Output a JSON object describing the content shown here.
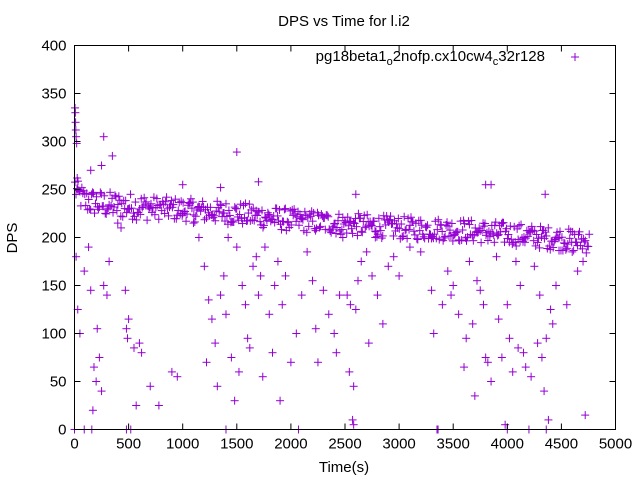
{
  "chart_data": {
    "type": "scatter",
    "title": "DPS vs Time for l.i2",
    "xlabel": "Time(s)",
    "ylabel": "DPS",
    "xlim": [
      0,
      5000
    ],
    "ylim": [
      0,
      400
    ],
    "xticks": [
      "0",
      "500",
      "1000",
      "1500",
      "2000",
      "2500",
      "3000",
      "3500",
      "4000",
      "4500",
      "5000"
    ],
    "yticks": [
      "0",
      "50",
      "100",
      "150",
      "200",
      "250",
      "300",
      "350",
      "400"
    ],
    "grid": false,
    "legend_position": "top-right",
    "marker": "plus",
    "series": [
      {
        "name": "pg18beta1_o2nofp.cx10cw4_c32r128",
        "legend_parts": {
          "part1": "pg18beta1",
          "sub1": "o",
          "part2": "2nofp.cx10cw4",
          "sub2": "c",
          "part3": "32r128"
        },
        "color": "#9400d3",
        "trend": {
          "t": [
            0,
            30,
            100,
            300,
            600,
            1000,
            1500,
            2000,
            2500,
            3000,
            3500,
            4000,
            4500,
            4760
          ],
          "dps": [
            255,
            245,
            238,
            234,
            232,
            229,
            225,
            218,
            214,
            210,
            208,
            204,
            198,
            195
          ]
        },
        "points": [
          [
            5,
            335
          ],
          [
            8,
            330
          ],
          [
            10,
            320
          ],
          [
            12,
            312
          ],
          [
            15,
            305
          ],
          [
            20,
            298
          ],
          [
            25,
            262
          ],
          [
            30,
            250
          ],
          [
            150,
            270
          ],
          [
            250,
            275
          ],
          [
            270,
            305
          ],
          [
            350,
            285
          ],
          [
            1000,
            255
          ],
          [
            1350,
            252
          ],
          [
            1500,
            289
          ],
          [
            1700,
            258
          ],
          [
            3800,
            255
          ],
          [
            3850,
            255
          ],
          [
            4350,
            245
          ],
          [
            2600,
            245
          ],
          [
            15,
            180
          ],
          [
            30,
            125
          ],
          [
            50,
            100
          ],
          [
            90,
            165
          ],
          [
            130,
            190
          ],
          [
            150,
            145
          ],
          [
            170,
            20
          ],
          [
            180,
            65
          ],
          [
            200,
            50
          ],
          [
            210,
            105
          ],
          [
            230,
            75
          ],
          [
            250,
            40
          ],
          [
            270,
            150
          ],
          [
            300,
            140
          ],
          [
            320,
            175
          ],
          [
            400,
            215
          ],
          [
            430,
            210
          ],
          [
            470,
            145
          ],
          [
            480,
            105
          ],
          [
            490,
            95
          ],
          [
            500,
            115
          ],
          [
            520,
            0
          ],
          [
            550,
            85
          ],
          [
            570,
            25
          ],
          [
            600,
            90
          ],
          [
            620,
            80
          ],
          [
            700,
            45
          ],
          [
            780,
            25
          ],
          [
            900,
            60
          ],
          [
            950,
            55
          ],
          [
            1000,
            225
          ],
          [
            1100,
            215
          ],
          [
            1150,
            200
          ],
          [
            1200,
            170
          ],
          [
            1220,
            70
          ],
          [
            1240,
            135
          ],
          [
            1270,
            115
          ],
          [
            1300,
            90
          ],
          [
            1320,
            45
          ],
          [
            1350,
            140
          ],
          [
            1380,
            160
          ],
          [
            1400,
            120
          ],
          [
            1420,
            200
          ],
          [
            1450,
            75
          ],
          [
            1480,
            30
          ],
          [
            1500,
            190
          ],
          [
            1520,
            60
          ],
          [
            1550,
            150
          ],
          [
            1580,
            130
          ],
          [
            1600,
            95
          ],
          [
            1620,
            85
          ],
          [
            1650,
            170
          ],
          [
            1680,
            180
          ],
          [
            1700,
            140
          ],
          [
            1720,
            160
          ],
          [
            1740,
            55
          ],
          [
            1760,
            190
          ],
          [
            1800,
            120
          ],
          [
            1830,
            80
          ],
          [
            1850,
            150
          ],
          [
            1880,
            175
          ],
          [
            1900,
            30
          ],
          [
            1920,
            130
          ],
          [
            1950,
            160
          ],
          [
            2000,
            70
          ],
          [
            2050,
            100
          ],
          [
            2100,
            140
          ],
          [
            2150,
            185
          ],
          [
            2200,
            155
          ],
          [
            2230,
            105
          ],
          [
            2250,
            70
          ],
          [
            2300,
            145
          ],
          [
            2350,
            120
          ],
          [
            2400,
            100
          ],
          [
            2420,
            80
          ],
          [
            2450,
            140
          ],
          [
            2480,
            200
          ],
          [
            2520,
            140
          ],
          [
            2540,
            60
          ],
          [
            2550,
            130
          ],
          [
            2570,
            10
          ],
          [
            2580,
            45
          ],
          [
            2600,
            125
          ],
          [
            2620,
            155
          ],
          [
            2650,
            175
          ],
          [
            2700,
            185
          ],
          [
            2720,
            90
          ],
          [
            2750,
            160
          ],
          [
            2780,
            200
          ],
          [
            2800,
            140
          ],
          [
            2850,
            110
          ],
          [
            2900,
            170
          ],
          [
            2950,
            180
          ],
          [
            3000,
            160
          ],
          [
            3100,
            190
          ],
          [
            3200,
            185
          ],
          [
            3300,
            145
          ],
          [
            3320,
            100
          ],
          [
            3350,
            0
          ],
          [
            3400,
            130
          ],
          [
            3450,
            165
          ],
          [
            3480,
            140
          ],
          [
            3500,
            150
          ],
          [
            3550,
            120
          ],
          [
            3600,
            65
          ],
          [
            3620,
            95
          ],
          [
            3650,
            175
          ],
          [
            3680,
            110
          ],
          [
            3700,
            35
          ],
          [
            3720,
            155
          ],
          [
            3750,
            145
          ],
          [
            3780,
            130
          ],
          [
            3800,
            75
          ],
          [
            3820,
            70
          ],
          [
            3850,
            50
          ],
          [
            3880,
            195
          ],
          [
            3900,
            180
          ],
          [
            3920,
            115
          ],
          [
            3950,
            75
          ],
          [
            3980,
            5
          ],
          [
            4000,
            130
          ],
          [
            4020,
            95
          ],
          [
            4050,
            60
          ],
          [
            4080,
            175
          ],
          [
            4100,
            85
          ],
          [
            4120,
            150
          ],
          [
            4150,
            80
          ],
          [
            4170,
            65
          ],
          [
            4200,
            0
          ],
          [
            4220,
            55
          ],
          [
            4250,
            170
          ],
          [
            4280,
            90
          ],
          [
            4300,
            140
          ],
          [
            4320,
            75
          ],
          [
            4340,
            40
          ],
          [
            4360,
            95
          ],
          [
            4380,
            10
          ],
          [
            4400,
            125
          ],
          [
            4420,
            110
          ],
          [
            4450,
            150
          ],
          [
            4480,
            200
          ],
          [
            4550,
            130
          ],
          [
            4600,
            185
          ],
          [
            4650,
            165
          ],
          [
            4700,
            175
          ],
          [
            4720,
            15
          ],
          [
            0,
            0
          ],
          [
            90,
            0
          ],
          [
            160,
            0
          ],
          [
            480,
            0
          ],
          [
            1400,
            0
          ],
          [
            2070,
            0
          ],
          [
            2580,
            5
          ],
          [
            3360,
            0
          ],
          [
            4000,
            0
          ],
          [
            4360,
            0
          ]
        ]
      }
    ]
  }
}
